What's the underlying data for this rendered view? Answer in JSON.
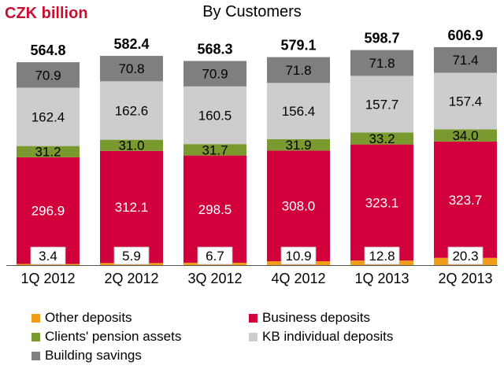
{
  "chart_data": {
    "type": "bar",
    "stacked": true,
    "title": "By Customers",
    "unit_label": "CZK billion",
    "categories": [
      "1Q 2012",
      "2Q 2012",
      "3Q 2012",
      "4Q 2012",
      "1Q 2013",
      "2Q 2013"
    ],
    "totals": [
      "564.8",
      "582.4",
      "568.3",
      "579.1",
      "598.7",
      "606.9"
    ],
    "series": [
      {
        "name": "Other deposits",
        "color": "#f29d1a",
        "values": [
          3.4,
          5.9,
          6.7,
          10.9,
          12.8,
          20.3
        ],
        "labels": [
          "3.4",
          "5.9",
          "6.7",
          "10.9",
          "12.8",
          "20.3"
        ]
      },
      {
        "name": "Business deposits",
        "color": "#d1003c",
        "values": [
          296.9,
          312.1,
          298.5,
          308.0,
          323.1,
          323.7
        ],
        "labels": [
          "296.9",
          "312.1",
          "298.5",
          "308.0",
          "323.1",
          "323.7"
        ]
      },
      {
        "name": "Clients' pension assets",
        "color": "#7a9a2f",
        "values": [
          31.2,
          31.0,
          31.7,
          31.9,
          33.2,
          34.0
        ],
        "labels": [
          "31.2",
          "31.0",
          "31.7",
          "31.9",
          "33.2",
          "34.0"
        ]
      },
      {
        "name": "KB individual deposits",
        "color": "#cdcdcd",
        "values": [
          162.4,
          162.6,
          160.5,
          156.4,
          157.7,
          157.4
        ],
        "labels": [
          "162.4",
          "162.6",
          "160.5",
          "156.4",
          "157.7",
          "157.4"
        ]
      },
      {
        "name": "Building savings",
        "color": "#7f7f7f",
        "values": [
          70.9,
          70.8,
          70.9,
          71.8,
          71.8,
          71.4
        ],
        "labels": [
          "70.9",
          "70.8",
          "70.9",
          "71.8",
          "71.8",
          "71.4"
        ]
      }
    ],
    "legend_order": [
      "Other deposits",
      "Business deposits",
      "Clients' pension assets",
      "KB individual deposits",
      "Building savings"
    ],
    "legend_position": "bottom",
    "grid": false
  }
}
